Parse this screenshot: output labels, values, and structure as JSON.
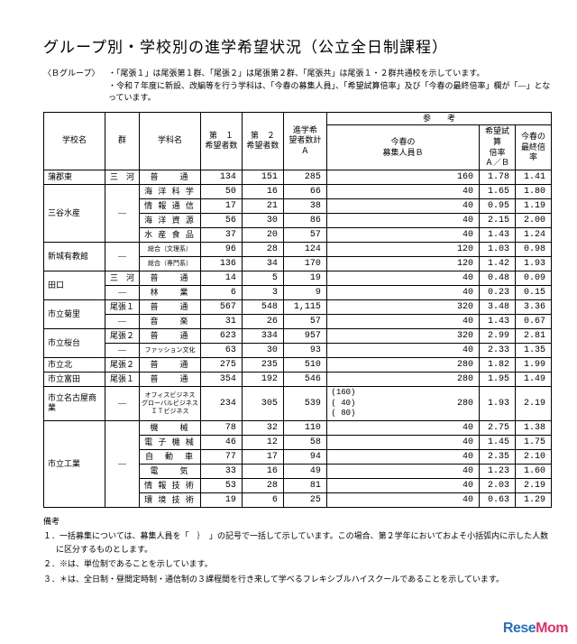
{
  "title": "グループ別・学校別の進学希望状況（公立全日制課程）",
  "group_label": "〈Ｂグループ〉",
  "sub_line1": "・「尾張１」は尾張第１群、「尾張２」は尾張第２群、「尾張共」は尾張１・２群共通校を示しています。",
  "sub_line2": "・令和７年度に新設、改編等を行う学科は、「今春の募集人員」、「希望試算倍率」及び「今春の最終倍率」欄が「―」となっています。",
  "columns": {
    "school": "学校名",
    "gun": "群",
    "dept": "学科名",
    "n1": "第　１\n希望者数",
    "n2": "第　２\n希望者数",
    "sumA": "進学希\n望者数計Ａ",
    "sanko": "参　　考",
    "b": "今春の\n募集人員Ｂ",
    "ab": "希望試算\n倍率\nＡ／Ｂ",
    "final": "今春の\n最終倍率"
  },
  "rows": [
    {
      "school": "蒲郡東",
      "gun": "三　河",
      "dept": "普　　通",
      "n1": "134",
      "n2": "151",
      "a": "285",
      "b": "160",
      "ab": "1.78",
      "f": "1.41"
    },
    {
      "school": "三谷水産",
      "school_rows": 4,
      "gun": "―",
      "gun_rows": 4,
      "dept": "海 洋 科 学",
      "n1": "50",
      "n2": "16",
      "a": "66",
      "b": "40",
      "ab": "1.65",
      "f": "1.80"
    },
    {
      "dept": "情 報 通 信",
      "n1": "17",
      "n2": "21",
      "a": "38",
      "b": "40",
      "ab": "0.95",
      "f": "1.19"
    },
    {
      "dept": "海 洋 資 源",
      "n1": "56",
      "n2": "30",
      "a": "86",
      "b": "40",
      "ab": "2.15",
      "f": "2.00"
    },
    {
      "dept": "水 産 食 品",
      "n1": "37",
      "n2": "20",
      "a": "57",
      "b": "40",
      "ab": "1.43",
      "f": "1.24"
    },
    {
      "school": "新城有教館",
      "school_rows": 2,
      "gun": "―",
      "gun_rows": 2,
      "dept": "総合（文理系）",
      "dept_small": true,
      "n1": "96",
      "n2": "28",
      "a": "124",
      "b": "120",
      "ab": "1.03",
      "f": "0.98"
    },
    {
      "dept": "総合（専門系）",
      "dept_small": true,
      "n1": "136",
      "n2": "34",
      "a": "170",
      "b": "120",
      "ab": "1.42",
      "f": "1.93"
    },
    {
      "school": "田口",
      "school_rows": 2,
      "gun": "三　河",
      "dept": "普　　通",
      "n1": "14",
      "n2": "5",
      "a": "19",
      "b": "40",
      "ab": "0.48",
      "f": "0.09"
    },
    {
      "gun": "―",
      "dept": "林　　業",
      "n1": "6",
      "n2": "3",
      "a": "9",
      "b": "40",
      "ab": "0.23",
      "f": "0.15"
    },
    {
      "school": "市立菊里",
      "school_rows": 2,
      "gun": "尾張１",
      "dept": "普　　通",
      "n1": "567",
      "n2": "548",
      "a": "1,115",
      "b": "320",
      "ab": "3.48",
      "f": "3.36"
    },
    {
      "gun": "―",
      "dept": "音　　楽",
      "n1": "31",
      "n2": "26",
      "a": "57",
      "b": "40",
      "ab": "1.43",
      "f": "0.67"
    },
    {
      "school": "市立桜台",
      "school_rows": 2,
      "gun": "尾張２",
      "dept": "普　　通",
      "n1": "623",
      "n2": "334",
      "a": "957",
      "b": "320",
      "ab": "2.99",
      "f": "2.81"
    },
    {
      "gun": "―",
      "dept": "ファッション文化",
      "dept_small": true,
      "n1": "63",
      "n2": "30",
      "a": "93",
      "b": "40",
      "ab": "2.33",
      "f": "1.35"
    },
    {
      "school": "市立北",
      "gun": "尾張２",
      "dept": "普　　通",
      "n1": "275",
      "n2": "235",
      "a": "510",
      "b": "280",
      "ab": "1.82",
      "f": "1.99"
    },
    {
      "school": "市立富田",
      "gun": "尾張１",
      "dept": "普　　通",
      "n1": "354",
      "n2": "192",
      "a": "546",
      "b": "280",
      "ab": "1.95",
      "f": "1.49"
    },
    {
      "school": "市立名古屋商業",
      "gun": "―",
      "dept": "オフィスビジネス\nグローバルビジネス\nＩＴビジネス",
      "dept_small": true,
      "n1": "234",
      "n2": "305",
      "a": "539",
      "b_paren": "(160)\n( 40)\n( 80)",
      "b": "280",
      "ab": "1.93",
      "f": "2.19"
    },
    {
      "school": "市立工業",
      "school_rows": 6,
      "gun": "―",
      "gun_rows": 6,
      "dept": "機　　械",
      "n1": "78",
      "n2": "32",
      "a": "110",
      "b": "40",
      "ab": "2.75",
      "f": "1.38"
    },
    {
      "dept": "電 子 機 械",
      "n1": "46",
      "n2": "12",
      "a": "58",
      "b": "40",
      "ab": "1.45",
      "f": "1.75"
    },
    {
      "dept": "自　動　車",
      "n1": "77",
      "n2": "17",
      "a": "94",
      "b": "40",
      "ab": "2.35",
      "f": "2.10"
    },
    {
      "dept": "電　　気",
      "n1": "33",
      "n2": "16",
      "a": "49",
      "b": "40",
      "ab": "1.23",
      "f": "1.60"
    },
    {
      "dept": "情 報 技 術",
      "n1": "53",
      "n2": "28",
      "a": "81",
      "b": "40",
      "ab": "2.03",
      "f": "2.19"
    },
    {
      "dept": "環 境 技 術",
      "n1": "19",
      "n2": "6",
      "a": "25",
      "b": "40",
      "ab": "0.63",
      "f": "1.29"
    }
  ],
  "notes_hdr": "備考",
  "notes": [
    "１．一括募集については、募集人員を「　｝　」の記号で一括して示しています。この場合、第２学年においておよそ小括弧内に示した人数に区分するものとします。",
    "２．※は、単位制であることを示しています。",
    "３．＊は、全日制・昼間定時制・通信制の３課程間を行き来して学べるフレキシブルハイスクールであることを示しています。"
  ],
  "watermark": {
    "a": "Rese",
    "b": "Mom"
  }
}
